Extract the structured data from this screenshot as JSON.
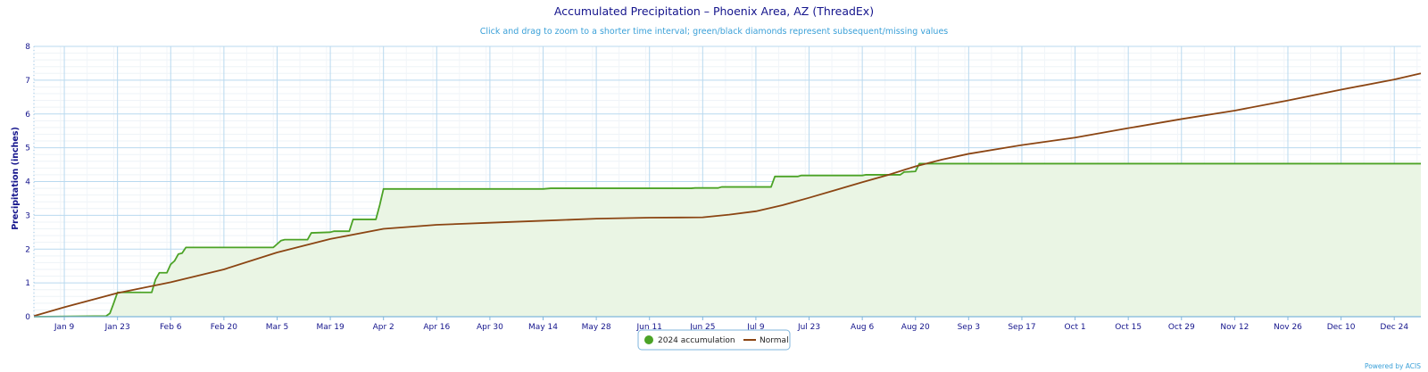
{
  "chart_data": {
    "type": "area",
    "title": "Accumulated Precipitation – Phoenix Area, AZ (ThreadEx)",
    "subtitle": "Click and drag to zoom to a shorter time interval; green/black diamonds represent subsequent/missing values",
    "ylabel": "Precipitation (inches)",
    "xlabel": "",
    "ylim": [
      0,
      8
    ],
    "y_ticks": [
      "0",
      "1",
      "2",
      "3",
      "4",
      "5",
      "6",
      "7",
      "8"
    ],
    "x_tick_labels": [
      "Jan 9",
      "Jan 23",
      "Feb 6",
      "Feb 20",
      "Mar 5",
      "Mar 19",
      "Apr 2",
      "Apr 16",
      "Apr 30",
      "May 14",
      "May 28",
      "Jun 11",
      "Jun 25",
      "Jul 9",
      "Jul 23",
      "Aug 6",
      "Aug 20",
      "Sep 3",
      "Sep 17",
      "Oct 1",
      "Oct 15",
      "Oct 29",
      "Nov 12",
      "Nov 26",
      "Dec 10",
      "Dec 24"
    ],
    "x_tick_dates": [
      "2024-01-09",
      "2024-01-23",
      "2024-02-06",
      "2024-02-20",
      "2024-03-05",
      "2024-03-19",
      "2024-04-02",
      "2024-04-16",
      "2024-04-30",
      "2024-05-14",
      "2024-05-28",
      "2024-06-11",
      "2024-06-25",
      "2024-07-09",
      "2024-07-23",
      "2024-08-06",
      "2024-08-20",
      "2024-09-03",
      "2024-09-17",
      "2024-10-01",
      "2024-10-15",
      "2024-10-29",
      "2024-11-12",
      "2024-11-26",
      "2024-12-10",
      "2024-12-24"
    ],
    "x_range": [
      "2024-01-01",
      "2024-12-31"
    ],
    "grid": true,
    "legend_position": "bottom-center",
    "series": [
      {
        "name": "2024 accumulation",
        "color": "#4ca326",
        "fill": "#eaf5e4",
        "style": "area",
        "points": [
          [
            "2024-01-01",
            0.0
          ],
          [
            "2024-01-20",
            0.02
          ],
          [
            "2024-01-21",
            0.1
          ],
          [
            "2024-01-22",
            0.4
          ],
          [
            "2024-01-23",
            0.72
          ],
          [
            "2024-02-01",
            0.72
          ],
          [
            "2024-02-02",
            1.1
          ],
          [
            "2024-02-03",
            1.3
          ],
          [
            "2024-02-05",
            1.3
          ],
          [
            "2024-02-06",
            1.55
          ],
          [
            "2024-02-07",
            1.65
          ],
          [
            "2024-02-08",
            1.85
          ],
          [
            "2024-02-09",
            1.88
          ],
          [
            "2024-02-10",
            2.05
          ],
          [
            "2024-03-04",
            2.05
          ],
          [
            "2024-03-06",
            2.25
          ],
          [
            "2024-03-07",
            2.28
          ],
          [
            "2024-03-13",
            2.28
          ],
          [
            "2024-03-14",
            2.48
          ],
          [
            "2024-03-19",
            2.5
          ],
          [
            "2024-03-20",
            2.53
          ],
          [
            "2024-03-24",
            2.53
          ],
          [
            "2024-03-25",
            2.88
          ],
          [
            "2024-03-31",
            2.88
          ],
          [
            "2024-04-01",
            3.3
          ],
          [
            "2024-04-02",
            3.78
          ],
          [
            "2024-05-14",
            3.78
          ],
          [
            "2024-05-16",
            3.8
          ],
          [
            "2024-06-22",
            3.8
          ],
          [
            "2024-06-23",
            3.81
          ],
          [
            "2024-06-29",
            3.81
          ],
          [
            "2024-06-30",
            3.84
          ],
          [
            "2024-07-13",
            3.84
          ],
          [
            "2024-07-14",
            4.15
          ],
          [
            "2024-07-20",
            4.15
          ],
          [
            "2024-07-21",
            4.18
          ],
          [
            "2024-08-06",
            4.18
          ],
          [
            "2024-08-07",
            4.2
          ],
          [
            "2024-08-16",
            4.2
          ],
          [
            "2024-08-17",
            4.28
          ],
          [
            "2024-08-20",
            4.3
          ],
          [
            "2024-08-21",
            4.53
          ],
          [
            "2024-12-31",
            4.53
          ]
        ]
      },
      {
        "name": "Normal",
        "color": "#8b4513",
        "style": "line",
        "points": [
          [
            "2024-01-01",
            0.02
          ],
          [
            "2024-01-09",
            0.28
          ],
          [
            "2024-01-23",
            0.7
          ],
          [
            "2024-02-06",
            1.02
          ],
          [
            "2024-02-20",
            1.4
          ],
          [
            "2024-03-05",
            1.9
          ],
          [
            "2024-03-19",
            2.3
          ],
          [
            "2024-04-02",
            2.6
          ],
          [
            "2024-04-16",
            2.72
          ],
          [
            "2024-04-30",
            2.78
          ],
          [
            "2024-05-14",
            2.84
          ],
          [
            "2024-05-28",
            2.9
          ],
          [
            "2024-06-11",
            2.93
          ],
          [
            "2024-06-25",
            2.94
          ],
          [
            "2024-07-02",
            3.02
          ],
          [
            "2024-07-09",
            3.12
          ],
          [
            "2024-07-16",
            3.3
          ],
          [
            "2024-07-23",
            3.52
          ],
          [
            "2024-07-30",
            3.75
          ],
          [
            "2024-08-06",
            3.98
          ],
          [
            "2024-08-13",
            4.2
          ],
          [
            "2024-08-20",
            4.45
          ],
          [
            "2024-08-27",
            4.65
          ],
          [
            "2024-09-03",
            4.82
          ],
          [
            "2024-09-17",
            5.08
          ],
          [
            "2024-10-01",
            5.3
          ],
          [
            "2024-10-15",
            5.58
          ],
          [
            "2024-10-29",
            5.85
          ],
          [
            "2024-11-12",
            6.1
          ],
          [
            "2024-11-26",
            6.4
          ],
          [
            "2024-12-10",
            6.72
          ],
          [
            "2024-12-24",
            7.02
          ],
          [
            "2024-12-31",
            7.2
          ]
        ]
      }
    ]
  },
  "credit": "Powered by ACIS"
}
